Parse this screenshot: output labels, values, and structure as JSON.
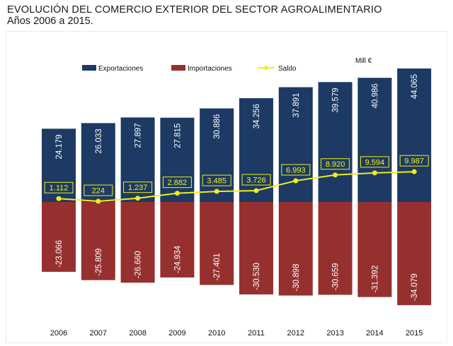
{
  "title": "EVOLUCIÓN DEL COMERCIO EXTERIOR DEL SECTOR AGROALIMENTARIO",
  "subtitle": "Años 2006 a 2015.",
  "unit_label": "Mill €",
  "colors": {
    "exportaciones": "#1c3a63",
    "importaciones": "#96302f",
    "saldo": "#f2ee13",
    "saldo_label_bg": "#1c3a63",
    "saldo_label_text": "#f7f21a"
  },
  "chart_data": {
    "type": "bar",
    "categories": [
      "2006",
      "2007",
      "2008",
      "2009",
      "2010",
      "2011",
      "2012",
      "2013",
      "2014",
      "2015"
    ],
    "series": [
      {
        "name": "Exportaciones",
        "type": "bar",
        "values": [
          24179,
          26033,
          27897,
          27815,
          30886,
          34256,
          37891,
          39579,
          40986,
          44065
        ],
        "labels": [
          "24.179",
          "26.033",
          "27.897",
          "27.815",
          "30.886",
          "34.256",
          "37.891",
          "39.579",
          "40.986",
          "44.065"
        ]
      },
      {
        "name": "Importaciones",
        "type": "bar",
        "values": [
          -23066,
          -25809,
          -26660,
          -24934,
          -27401,
          -30530,
          -30898,
          -30659,
          -31392,
          -34079
        ],
        "labels": [
          "-23.066",
          "-25.809",
          "-26.660",
          "-24.934",
          "-27.401",
          "-30.530",
          "-30.898",
          "-30.659",
          "-31.392",
          "-34.079"
        ]
      },
      {
        "name": "Saldo",
        "type": "line",
        "values": [
          1112,
          224,
          1237,
          2882,
          3485,
          3726,
          6993,
          8920,
          9594,
          9987
        ],
        "labels": [
          "1.112",
          "224",
          "1.237",
          "2.882",
          "3.485",
          "3.726",
          "6.993",
          "8.920",
          "9.594",
          "9.987"
        ]
      }
    ],
    "legend_position": "top",
    "grid": false
  }
}
